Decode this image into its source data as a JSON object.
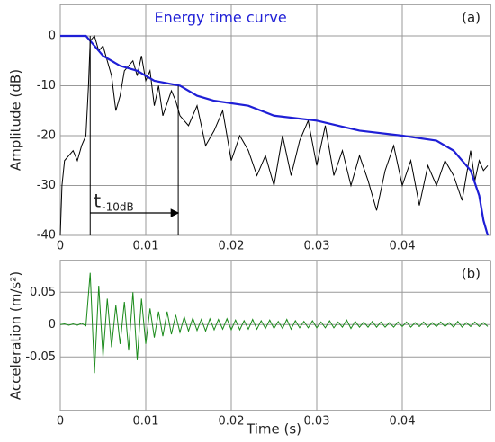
{
  "chart_data": [
    {
      "type": "line",
      "panel_label": "(a)",
      "y_label": "Amplitude (dB)",
      "xlim": [
        0,
        0.05
      ],
      "ylim": [
        -40,
        6.3
      ],
      "xticks": [
        0,
        0.01,
        0.02,
        0.03,
        0.04
      ],
      "yticks": [
        0,
        -10,
        -20,
        -30,
        -40
      ],
      "grid": true,
      "series": [
        {
          "color": "#000000",
          "x": [
            0,
            0.0002,
            0.0005,
            0.001,
            0.0015,
            0.002,
            0.0025,
            0.003,
            0.0033,
            0.0035,
            0.004,
            0.0045,
            0.005,
            0.0055,
            0.006,
            0.0065,
            0.007,
            0.0075,
            0.008,
            0.0085,
            0.009,
            0.0095,
            0.01,
            0.0105,
            0.011,
            0.0115,
            0.012,
            0.013,
            0.0135,
            0.014,
            0.015,
            0.016,
            0.017,
            0.018,
            0.019,
            0.02,
            0.021,
            0.022,
            0.023,
            0.024,
            0.025,
            0.026,
            0.027,
            0.028,
            0.029,
            0.03,
            0.031,
            0.032,
            0.033,
            0.034,
            0.035,
            0.036,
            0.037,
            0.038,
            0.039,
            0.04,
            0.041,
            0.042,
            0.043,
            0.044,
            0.045,
            0.046,
            0.047,
            0.048,
            0.0485,
            0.049,
            0.0495,
            0.05
          ],
          "values": [
            -40,
            -30,
            -25,
            -24,
            -23,
            -25,
            -22,
            -20,
            -10,
            -1,
            0,
            -3,
            -2,
            -5,
            -8,
            -15,
            -12,
            -7,
            -6,
            -5,
            -8,
            -4,
            -9,
            -7,
            -14,
            -10,
            -16,
            -11,
            -13,
            -16,
            -18,
            -14,
            -22,
            -19,
            -15,
            -25,
            -20,
            -23,
            -28,
            -24,
            -30,
            -20,
            -28,
            -21,
            -17,
            -26,
            -18,
            -28,
            -23,
            -30,
            -24,
            -29,
            -35,
            -27,
            -22,
            -30,
            -25,
            -34,
            -26,
            -30,
            -25,
            -28,
            -33,
            -23,
            -29,
            -25,
            -27,
            -26
          ]
        },
        {
          "name": "Energy time curve",
          "color": "#1f1fd6",
          "x": [
            0,
            0.003,
            0.004,
            0.005,
            0.007,
            0.009,
            0.011,
            0.014,
            0.016,
            0.018,
            0.022,
            0.025,
            0.03,
            0.035,
            0.04,
            0.044,
            0.046,
            0.048,
            0.049,
            0.0495,
            0.05
          ],
          "values": [
            0,
            0,
            -2,
            -4,
            -6,
            -7,
            -9,
            -10,
            -12,
            -13,
            -14,
            -16,
            -17,
            -19,
            -20,
            -21,
            -23,
            -27,
            -32,
            -37,
            -40
          ]
        }
      ],
      "interval": {
        "start": 0.0035,
        "end": 0.0138,
        "level": -35.5,
        "label": "t",
        "label_subscript": "-10dB"
      }
    },
    {
      "type": "line",
      "panel_label": "(b)",
      "y_label": "Acceleration (m/s²)",
      "x_label": "Time (s)",
      "xlim": [
        0,
        0.05
      ],
      "ylim": [
        -0.133,
        0.099
      ],
      "xticks": [
        0,
        0.01,
        0.02,
        0.03,
        0.04
      ],
      "yticks": [
        0.05,
        0,
        -0.05
      ],
      "grid": true,
      "series": [
        {
          "color": "#1a8a1a",
          "x": [
            0,
            0.0005,
            0.001,
            0.0015,
            0.002,
            0.0025,
            0.003,
            0.0035,
            0.004,
            0.0045,
            0.005,
            0.0055,
            0.006,
            0.0065,
            0.007,
            0.0075,
            0.008,
            0.0085,
            0.009,
            0.0095,
            0.01,
            0.0105,
            0.011,
            0.0115,
            0.012,
            0.0125,
            0.013,
            0.0135,
            0.014,
            0.0145,
            0.015,
            0.0155,
            0.016,
            0.0165,
            0.017,
            0.0175,
            0.018,
            0.0185,
            0.019,
            0.0195,
            0.02,
            0.0205,
            0.021,
            0.0215,
            0.022,
            0.0225,
            0.023,
            0.0235,
            0.024,
            0.0245,
            0.025,
            0.0255,
            0.026,
            0.0265,
            0.027,
            0.0275,
            0.028,
            0.0285,
            0.029,
            0.0295,
            0.03,
            0.0305,
            0.031,
            0.0315,
            0.032,
            0.0325,
            0.033,
            0.0335,
            0.034,
            0.0345,
            0.035,
            0.0355,
            0.036,
            0.0365,
            0.037,
            0.0375,
            0.038,
            0.0385,
            0.039,
            0.0395,
            0.04,
            0.0405,
            0.041,
            0.0415,
            0.042,
            0.0425,
            0.043,
            0.0435,
            0.044,
            0.0445,
            0.045,
            0.0455,
            0.046,
            0.0465,
            0.047,
            0.0475,
            0.048,
            0.0485,
            0.049,
            0.0495,
            0.05
          ],
          "values": [
            0,
            0.001,
            -0.001,
            0.001,
            -0.001,
            0.002,
            -0.002,
            0.08,
            -0.075,
            0.06,
            -0.05,
            0.04,
            -0.035,
            0.03,
            -0.03,
            0.035,
            -0.04,
            0.05,
            -0.055,
            0.04,
            -0.03,
            0.025,
            -0.02,
            0.02,
            -0.018,
            0.02,
            -0.015,
            0.015,
            -0.012,
            0.012,
            -0.01,
            0.01,
            -0.009,
            0.008,
            -0.01,
            0.009,
            -0.008,
            0.008,
            -0.007,
            0.009,
            -0.008,
            0.007,
            -0.008,
            0.006,
            -0.007,
            0.008,
            -0.007,
            0.006,
            -0.006,
            0.007,
            -0.006,
            0.005,
            -0.006,
            0.008,
            -0.007,
            0.006,
            -0.005,
            0.005,
            -0.005,
            0.006,
            -0.005,
            0.004,
            -0.005,
            0.006,
            -0.005,
            0.004,
            -0.004,
            0.007,
            -0.006,
            0.005,
            -0.004,
            0.004,
            -0.004,
            0.005,
            -0.004,
            0.004,
            -0.004,
            0.003,
            -0.004,
            0.004,
            -0.003,
            0.004,
            -0.004,
            0.003,
            -0.003,
            0.004,
            -0.004,
            0.003,
            -0.003,
            0.004,
            -0.003,
            0.003,
            -0.004,
            0.005,
            -0.004,
            0.003,
            -0.003,
            0.004,
            -0.003,
            0.003,
            -0.003
          ]
        }
      ]
    }
  ]
}
